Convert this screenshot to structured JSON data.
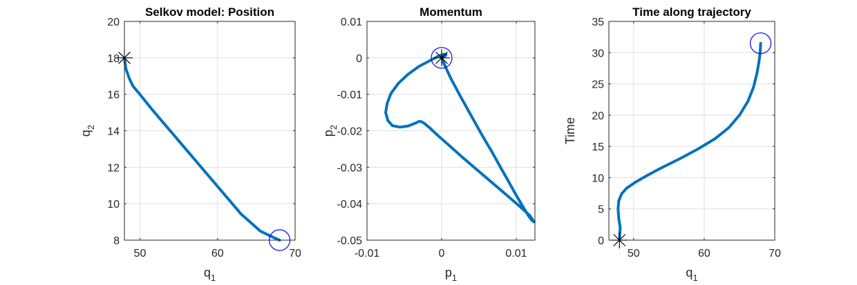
{
  "chart_data": [
    {
      "type": "line",
      "title": "Selkov model: Position",
      "xlabel": {
        "base": "q",
        "sub": "1"
      },
      "ylabel": {
        "base": "q",
        "sub": "2"
      },
      "xlim": [
        48,
        70
      ],
      "ylim": [
        8,
        20
      ],
      "xticks": [
        50,
        60,
        70
      ],
      "yticks": [
        8,
        10,
        12,
        14,
        16,
        18,
        20
      ],
      "xtick_labels": [
        "50",
        "60",
        "70"
      ],
      "ytick_labels": [
        "8",
        "10",
        "12",
        "14",
        "16",
        "18",
        "20"
      ],
      "grid": true,
      "series": [
        {
          "color": "#0072bd",
          "x": [
            48.0,
            48.2,
            48.6,
            49.1,
            49.8,
            51.5,
            54,
            57,
            60,
            63,
            65.5,
            67.2,
            68.0
          ],
          "y": [
            18.0,
            17.4,
            16.9,
            16.45,
            16.1,
            15.2,
            13.95,
            12.45,
            10.95,
            9.45,
            8.5,
            8.15,
            8.0
          ]
        }
      ],
      "markers": [
        {
          "kind": "star",
          "x": 48.0,
          "y": 18.0,
          "color": "#000000"
        },
        {
          "kind": "circle",
          "x": 68.0,
          "y": 8.0,
          "color": "#0000ff"
        }
      ]
    },
    {
      "type": "line",
      "title": "Momentum",
      "xlabel": {
        "base": "p",
        "sub": "1"
      },
      "ylabel": {
        "base": "p",
        "sub": "2"
      },
      "xlim": [
        -0.01,
        0.0125
      ],
      "ylim": [
        -0.05,
        0.01
      ],
      "xticks": [
        -0.01,
        0,
        0.01
      ],
      "yticks": [
        -0.05,
        -0.04,
        -0.03,
        -0.02,
        -0.01,
        0,
        0.01
      ],
      "xtick_labels": [
        "-0.01",
        "0",
        "0.01"
      ],
      "ytick_labels": [
        "-0.05",
        "-0.04",
        "-0.03",
        "-0.02",
        "-0.01",
        "0",
        "0.01"
      ],
      "grid": true,
      "series": [
        {
          "color": "#0072bd",
          "x": [
            0.0,
            0.0004,
            0.0012,
            0.0025,
            0.004,
            0.0055,
            0.0068,
            0.0078,
            0.0088,
            0.0098,
            0.0108,
            0.0116,
            0.0121,
            0.0124,
            0.0118,
            0.0105,
            0.0088,
            0.0068,
            0.0048,
            0.0028,
            0.001,
            -0.0005,
            -0.0016,
            -0.0023,
            -0.0027,
            -0.003,
            -0.0035,
            -0.0045,
            -0.0056,
            -0.0066,
            -0.0072,
            -0.0075,
            -0.0073,
            -0.0068,
            -0.0058,
            -0.0045,
            -0.003,
            -0.0015,
            -0.0005,
            0.0003,
            0.0006,
            0.0005,
            0.0002,
            0.0
          ],
          "y": [
            0.0,
            -0.002,
            -0.0055,
            -0.0105,
            -0.016,
            -0.0215,
            -0.026,
            -0.0297,
            -0.0333,
            -0.037,
            -0.0405,
            -0.0432,
            -0.0446,
            -0.045,
            -0.0432,
            -0.0408,
            -0.0378,
            -0.0343,
            -0.0308,
            -0.0273,
            -0.024,
            -0.0213,
            -0.0192,
            -0.018,
            -0.0175,
            -0.0174,
            -0.0179,
            -0.0187,
            -0.019,
            -0.0186,
            -0.0172,
            -0.015,
            -0.0125,
            -0.0098,
            -0.007,
            -0.0045,
            -0.0023,
            -0.0007,
            0.0004,
            0.001,
            0.0009,
            0.0006,
            0.0002,
            0.0
          ]
        }
      ],
      "markers": [
        {
          "kind": "star",
          "x": 0.0,
          "y": 0.0,
          "color": "#000000"
        },
        {
          "kind": "circle",
          "x": 0.0,
          "y": 0.0,
          "color": "#0000ff"
        }
      ]
    },
    {
      "type": "line",
      "title": "Time along trajectory",
      "xlabel": {
        "base": "q",
        "sub": "1"
      },
      "ylabel": {
        "base": "Time",
        "sub": ""
      },
      "xlim": [
        46.5,
        70
      ],
      "ylim": [
        0,
        35
      ],
      "xticks": [
        50,
        60,
        70
      ],
      "yticks": [
        0,
        5,
        10,
        15,
        20,
        25,
        30,
        35
      ],
      "xtick_labels": [
        "50",
        "60",
        "70"
      ],
      "ytick_labels": [
        "0",
        "5",
        "10",
        "15",
        "20",
        "25",
        "30",
        "35"
      ],
      "grid": true,
      "series": [
        {
          "color": "#0072bd",
          "x": [
            48.0,
            48.05,
            48.1,
            47.9,
            47.8,
            47.9,
            48.3,
            49.0,
            50.3,
            52.0,
            54.0,
            56.5,
            59.0,
            61.5,
            63.5,
            65.0,
            66.2,
            67.0,
            67.5,
            67.8,
            67.95,
            68.0
          ],
          "y": [
            0.0,
            1.0,
            2.0,
            3.5,
            5.0,
            6.3,
            7.4,
            8.3,
            9.3,
            10.4,
            11.6,
            13.0,
            14.5,
            16.2,
            18.0,
            20.0,
            22.2,
            24.5,
            26.8,
            28.8,
            30.3,
            31.5
          ]
        }
      ],
      "markers": [
        {
          "kind": "star",
          "x": 48.0,
          "y": 0.0,
          "color": "#000000"
        },
        {
          "kind": "circle",
          "x": 68.0,
          "y": 31.5,
          "color": "#0000ff"
        }
      ]
    }
  ]
}
